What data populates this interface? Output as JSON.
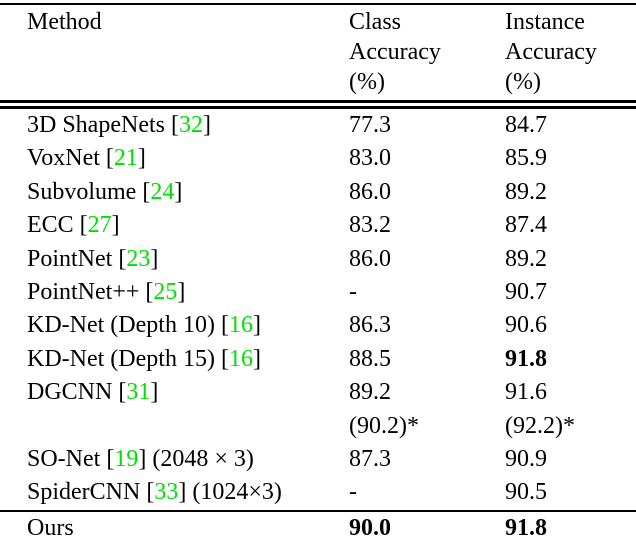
{
  "table": {
    "citation_color": "#00e000",
    "headers": {
      "method": "Method",
      "class_col": [
        "Class",
        "Accuracy",
        "(%)"
      ],
      "instance_col": [
        "Instance",
        "Accuracy",
        "(%)"
      ]
    },
    "rows": [
      {
        "method": [
          {
            "t": "3D ShapeNets ["
          },
          {
            "t": "32",
            "green": true
          },
          {
            "t": "]"
          }
        ],
        "class": "77.3",
        "instance": "84.7",
        "class_bold": false,
        "instance_bold": false
      },
      {
        "method": [
          {
            "t": "VoxNet ["
          },
          {
            "t": "21",
            "green": true
          },
          {
            "t": "]"
          }
        ],
        "class": "83.0",
        "instance": "85.9",
        "class_bold": false,
        "instance_bold": false
      },
      {
        "method": [
          {
            "t": "Subvolume ["
          },
          {
            "t": "24",
            "green": true
          },
          {
            "t": "]"
          }
        ],
        "class": "86.0",
        "instance": "89.2",
        "class_bold": false,
        "instance_bold": false
      },
      {
        "method": [
          {
            "t": "ECC ["
          },
          {
            "t": "27",
            "green": true
          },
          {
            "t": "]"
          }
        ],
        "class": "83.2",
        "instance": "87.4",
        "class_bold": false,
        "instance_bold": false
      },
      {
        "method": [
          {
            "t": "PointNet ["
          },
          {
            "t": "23",
            "green": true
          },
          {
            "t": "]"
          }
        ],
        "class": "86.0",
        "instance": "89.2",
        "class_bold": false,
        "instance_bold": false
      },
      {
        "method": [
          {
            "t": "PointNet++ ["
          },
          {
            "t": "25",
            "green": true
          },
          {
            "t": "]"
          }
        ],
        "class": "-",
        "instance": "90.7",
        "class_bold": false,
        "instance_bold": false
      },
      {
        "method": [
          {
            "t": "KD-Net (Depth 10) ["
          },
          {
            "t": "16",
            "green": true
          },
          {
            "t": "]"
          }
        ],
        "class": "86.3",
        "instance": "90.6",
        "class_bold": false,
        "instance_bold": false
      },
      {
        "method": [
          {
            "t": "KD-Net (Depth 15) ["
          },
          {
            "t": "16",
            "green": true
          },
          {
            "t": "]"
          }
        ],
        "class": "88.5",
        "instance": "91.8",
        "class_bold": false,
        "instance_bold": true
      },
      {
        "method": [
          {
            "t": "DGCNN ["
          },
          {
            "t": "31",
            "green": true
          },
          {
            "t": "]"
          }
        ],
        "class": "89.2",
        "instance": "91.6",
        "class_bold": false,
        "instance_bold": false
      },
      {
        "method": [],
        "class": "(90.2)*",
        "instance": "(92.2)*",
        "class_bold": false,
        "instance_bold": false
      },
      {
        "method": [
          {
            "t": "SO-Net ["
          },
          {
            "t": "19",
            "green": true
          },
          {
            "t": "] (2048 × 3)"
          }
        ],
        "class": "87.3",
        "instance": "90.9",
        "class_bold": false,
        "instance_bold": false
      },
      {
        "method": [
          {
            "t": "SpiderCNN ["
          },
          {
            "t": "33",
            "green": true
          },
          {
            "t": "] (1024×3)"
          }
        ],
        "class": "-",
        "instance": "90.5",
        "class_bold": false,
        "instance_bold": false
      }
    ],
    "footer_row": {
      "method": [
        {
          "t": "Ours"
        }
      ],
      "class": "90.0",
      "instance": "91.8",
      "class_bold": true,
      "instance_bold": true
    }
  }
}
